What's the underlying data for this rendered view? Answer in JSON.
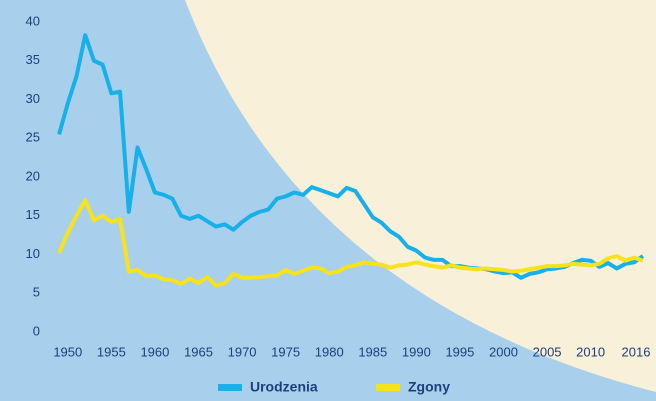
{
  "chart_data": {
    "type": "line",
    "x": [
      1949,
      1950,
      1951,
      1952,
      1953,
      1954,
      1955,
      1956,
      1957,
      1958,
      1959,
      1960,
      1961,
      1962,
      1963,
      1964,
      1965,
      1966,
      1967,
      1968,
      1969,
      1970,
      1971,
      1972,
      1973,
      1974,
      1975,
      1976,
      1977,
      1978,
      1979,
      1980,
      1981,
      1982,
      1983,
      1984,
      1985,
      1986,
      1987,
      1988,
      1989,
      1990,
      1991,
      1992,
      1993,
      1994,
      1995,
      1996,
      1997,
      1998,
      1999,
      2000,
      2001,
      2002,
      2003,
      2004,
      2005,
      2006,
      2007,
      2008,
      2009,
      2010,
      2011,
      2012,
      2013,
      2014,
      2015,
      2016
    ],
    "series": [
      {
        "name": "Urodzenia",
        "color": "#18b0e8",
        "values": [
          25.5,
          29.5,
          33,
          38.3,
          35,
          34.5,
          30.8,
          31,
          15.5,
          23.8,
          21,
          18,
          17.7,
          17.2,
          15,
          14.6,
          15,
          14.3,
          13.6,
          13.9,
          13.2,
          14.2,
          15,
          15.5,
          15.8,
          17.2,
          17.5,
          18,
          17.7,
          18.7,
          18.3,
          17.9,
          17.5,
          18.6,
          18.2,
          16.5,
          14.8,
          14.1,
          13,
          12.3,
          11,
          10.5,
          9.6,
          9.3,
          9.3,
          8.5,
          8.5,
          8.3,
          8.2,
          8.1,
          7.8,
          7.6,
          7.7,
          7,
          7.5,
          7.7,
          8.1,
          8.2,
          8.4,
          8.9,
          9.3,
          9.2,
          8.4,
          8.9,
          8.2,
          8.8,
          9,
          9.8
        ]
      },
      {
        "name": "Zgony",
        "color": "#f8e21c",
        "values": [
          10.2,
          12.8,
          15,
          17,
          14.4,
          15,
          14.2,
          14.6,
          7.8,
          8,
          7.2,
          7.3,
          6.8,
          6.7,
          6.2,
          6.9,
          6.3,
          7.1,
          6,
          6.3,
          7.5,
          7,
          7,
          7.1,
          7.2,
          7.3,
          8,
          7.5,
          7.9,
          8.3,
          8.2,
          7.6,
          7.8,
          8.4,
          8.6,
          9,
          8.8,
          8.7,
          8.3,
          8.6,
          8.7,
          9,
          8.7,
          8.5,
          8.3,
          8.6,
          8.3,
          8.2,
          8.1,
          8.2,
          8.1,
          8,
          7.8,
          7.9,
          8.1,
          8.3,
          8.5,
          8.5,
          8.6,
          8.8,
          8.7,
          8.6,
          8.8,
          9.5,
          9.8,
          9.2,
          9.6,
          9.2
        ]
      }
    ],
    "xlim": [
      1947.5,
      2017.5
    ],
    "xticks": [
      1950,
      1955,
      1960,
      1965,
      1970,
      1975,
      1980,
      1985,
      1990,
      1995,
      2000,
      2005,
      2010,
      2016
    ],
    "ylim": [
      0,
      40
    ],
    "yticks": [
      0,
      5,
      10,
      15,
      20,
      25,
      30,
      35,
      40
    ],
    "grid": false
  }
}
